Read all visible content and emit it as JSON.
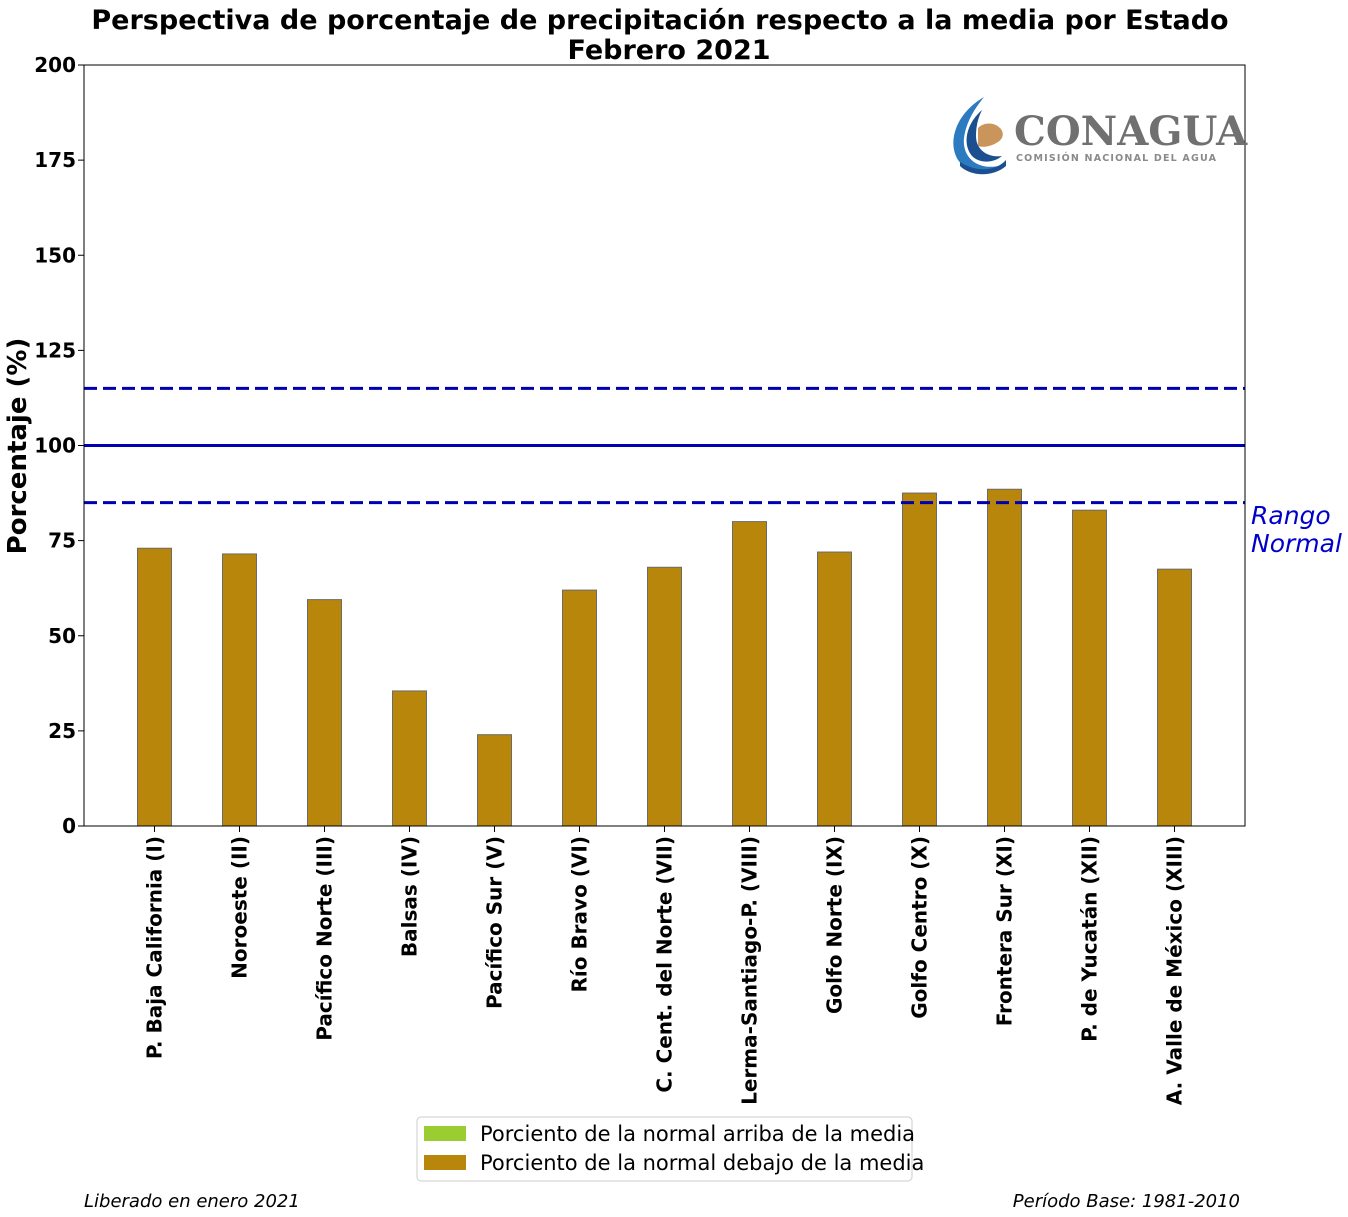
{
  "chart_data": {
    "type": "bar",
    "title": "Perspectiva de porcentaje de precipitación respecto a la media por Estado",
    "subtitle": "Febrero 2021",
    "ylabel": "Porcentaje (%)",
    "xlabel": "",
    "ylim": [
      0,
      200
    ],
    "yticks": [
      "0",
      "25",
      "50",
      "75",
      "100",
      "125",
      "150",
      "175",
      "200"
    ],
    "categories": [
      "P. Baja California (I)",
      "Noroeste (II)",
      "Pacífico Norte (III)",
      "Balsas (IV)",
      "Pacífico Sur (V)",
      "Río Bravo (VI)",
      "C. Cent. del Norte (VII)",
      "Lerma-Santiago-P. (VIII)",
      "Golfo Norte (IX)",
      "Golfo Centro (X)",
      "Frontera Sur (XI)",
      "P. de Yucatán (XII)",
      "A. Valle de México (XIII)"
    ],
    "values": [
      73,
      71.5,
      59.5,
      35.5,
      24,
      62,
      68,
      80,
      72,
      87.5,
      88.5,
      83,
      67.5
    ],
    "reference_lines": {
      "mean": 100,
      "normal_range_upper": 115,
      "normal_range_lower": 85
    },
    "normal_range_label": [
      "Rango",
      "Normal"
    ],
    "legend": [
      {
        "label": "Porciento de la normal arriba de la media",
        "color": "#9acd32"
      },
      {
        "label": "Porciento de la normal debajo de la media",
        "color": "#b8860b"
      }
    ],
    "legend_position": "bottom-center",
    "grid": false,
    "colors": {
      "below": "#b8860b",
      "above": "#9acd32",
      "reference": "#0000b3",
      "range_label": "#0000cc"
    }
  },
  "logo": {
    "name": "CONAGUA",
    "subtitle": "COMISIÓN NACIONAL DEL AGUA"
  },
  "footer": {
    "released": "Liberado en enero 2021",
    "base_period": "Período Base: 1981-2010"
  }
}
